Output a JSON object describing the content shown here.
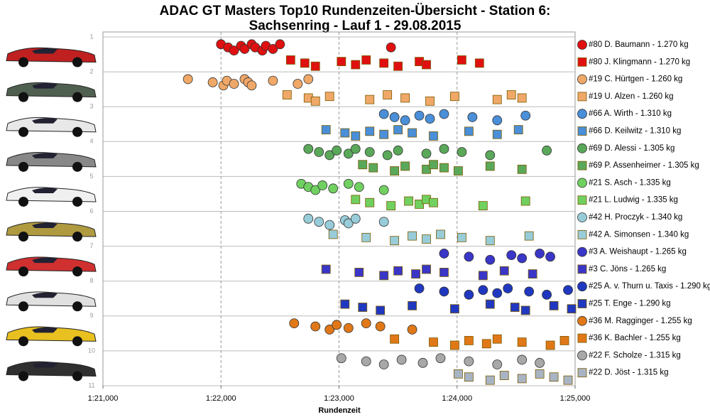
{
  "chart_data": {
    "type": "strip",
    "title": "ADAC GT Masters Top10 Rundenzeiten-Übersicht - Station 6:",
    "subtitle": "Sachsenring - Lauf 1 - 29.08.2015",
    "x_label": "Rundenzeit",
    "xlim": [
      81,
      85
    ],
    "xticks": [
      {
        "value": 81,
        "label": "1:21,000"
      },
      {
        "value": 82,
        "label": "1:22,000"
      },
      {
        "value": 83,
        "label": "1:23,000"
      },
      {
        "value": 84,
        "label": "1:24,000"
      },
      {
        "value": 85,
        "label": "1:25,000"
      }
    ],
    "ylim": [
      1,
      11
    ],
    "yticks": [
      1,
      2,
      3,
      4,
      5,
      6,
      7,
      8,
      9,
      10,
      11
    ],
    "grid": true,
    "series": [
      {
        "name": "#80 D. Baumann - 1.270 kg",
        "color": "#e01010",
        "marker": "circle",
        "values": [
          82.0,
          82.06,
          82.11,
          82.17,
          82.2,
          82.26,
          82.29,
          82.35,
          82.38,
          82.44,
          82.5,
          83.44
        ]
      },
      {
        "name": "#80 J. Klingmann - 1.270 kg",
        "color": "#e01010",
        "marker": "square",
        "values": [
          82.59,
          82.71,
          82.8,
          83.02,
          83.14,
          83.23,
          83.38,
          83.5,
          83.68,
          83.74,
          84.04,
          84.19
        ]
      },
      {
        "name": "#19 C. Hürtgen - 1.260 kg",
        "color": "#f0a868",
        "marker": "circle",
        "values": [
          81.72,
          81.93,
          82.02,
          82.05,
          82.11,
          82.2,
          82.23,
          82.26,
          82.44,
          82.65,
          82.74
        ]
      },
      {
        "name": "#19 U. Alzen - 1.260 kg",
        "color": "#f0a868",
        "marker": "square",
        "values": [
          82.56,
          82.74,
          82.8,
          82.92,
          83.26,
          83.41,
          83.56,
          83.77,
          83.98,
          84.34,
          84.46,
          84.55
        ]
      },
      {
        "name": "#66 A. Wirth - 1.310 kg",
        "color": "#4a8fd8",
        "marker": "circle",
        "values": [
          83.38,
          83.47,
          83.56,
          83.68,
          83.77,
          83.89,
          84.13,
          84.34,
          84.58
        ]
      },
      {
        "name": "#66 D. Keilwitz - 1.310 kg",
        "color": "#4a8fd8",
        "marker": "square",
        "values": [
          82.89,
          83.05,
          83.14,
          83.26,
          83.38,
          83.5,
          83.62,
          83.8,
          84.1,
          84.34,
          84.52
        ]
      },
      {
        "name": "#69 D. Alessi - 1.305 kg",
        "color": "#5aa85a",
        "marker": "circle",
        "values": [
          82.74,
          82.83,
          82.92,
          82.98,
          83.08,
          83.14,
          83.26,
          83.41,
          83.5,
          83.74,
          83.89,
          84.04,
          84.28,
          84.76
        ]
      },
      {
        "name": "#69 P. Assenheimer - 1.305 kg",
        "color": "#5aa85a",
        "marker": "square",
        "values": [
          83.2,
          83.29,
          83.47,
          83.56,
          83.74,
          83.8,
          83.89,
          84.01,
          84.28,
          84.55
        ]
      },
      {
        "name": "#21 S. Asch - 1.335 kg",
        "color": "#70d060",
        "marker": "circle",
        "values": [
          82.68,
          82.74,
          82.8,
          82.86,
          82.95,
          83.08,
          83.17,
          83.38
        ]
      },
      {
        "name": "#21 L. Ludwig - 1.335 kg",
        "color": "#70d060",
        "marker": "square",
        "values": [
          83.14,
          83.26,
          83.44,
          83.59,
          83.68,
          83.74,
          83.8,
          84.22,
          84.58
        ]
      },
      {
        "name": "#42 H. Proczyk - 1.340 kg",
        "color": "#98ccd8",
        "marker": "circle",
        "values": [
          82.74,
          82.83,
          82.92,
          83.05,
          83.08,
          83.14,
          83.38
        ]
      },
      {
        "name": "#42 A. Simonsen - 1.340 kg",
        "color": "#98ccd8",
        "marker": "square",
        "values": [
          82.95,
          83.23,
          83.47,
          83.62,
          83.74,
          83.86,
          84.04,
          84.28,
          84.61
        ]
      },
      {
        "name": "#3 A. Weishaupt - 1.265 kg",
        "color": "#3a36c8",
        "marker": "circle",
        "values": [
          83.89,
          84.1,
          84.28,
          84.46,
          84.55,
          84.7,
          84.79
        ]
      },
      {
        "name": "#3 C. Jöns - 1.265 kg",
        "color": "#3a36c8",
        "marker": "square",
        "values": [
          82.89,
          83.17,
          83.38,
          83.5,
          83.65,
          83.74,
          83.89,
          84.22,
          84.4,
          84.64
        ]
      },
      {
        "name": "#25 A. v. Thurn u. Taxis - 1.290 kg",
        "color": "#2038c0",
        "marker": "circle",
        "values": [
          83.68,
          83.89,
          84.1,
          84.22,
          84.34,
          84.43,
          84.61,
          84.76,
          84.94
        ]
      },
      {
        "name": "#25 T. Enge - 1.290 kg",
        "color": "#2038c0",
        "marker": "square",
        "values": [
          83.05,
          83.2,
          83.35,
          83.62,
          83.98,
          84.28,
          84.49,
          84.58,
          84.82,
          84.97
        ]
      },
      {
        "name": "#36 M. Ragginger - 1.255 kg",
        "color": "#e07818",
        "marker": "circle",
        "values": [
          82.62,
          82.8,
          82.92,
          82.98,
          83.08,
          83.23,
          83.35,
          83.62
        ]
      },
      {
        "name": "#36 K. Bachler - 1.255 kg",
        "color": "#e07818",
        "marker": "square",
        "values": [
          83.47,
          83.8,
          83.98,
          84.1,
          84.25,
          84.34,
          84.55,
          84.79,
          84.91
        ]
      },
      {
        "name": "#22 F. Scholze - 1.315 kg",
        "color": "#a8a8a8",
        "marker": "circle",
        "values": [
          83.02,
          83.23,
          83.38,
          83.53,
          83.71,
          83.86,
          84.1,
          84.34,
          84.55,
          84.7
        ]
      },
      {
        "name": "#22 D. Jöst - 1.315 kg",
        "color": "#a8b4c4",
        "marker": "square",
        "values": [
          84.01,
          84.1,
          84.28,
          84.4,
          84.55,
          84.7,
          84.82,
          84.94
        ]
      }
    ]
  }
}
